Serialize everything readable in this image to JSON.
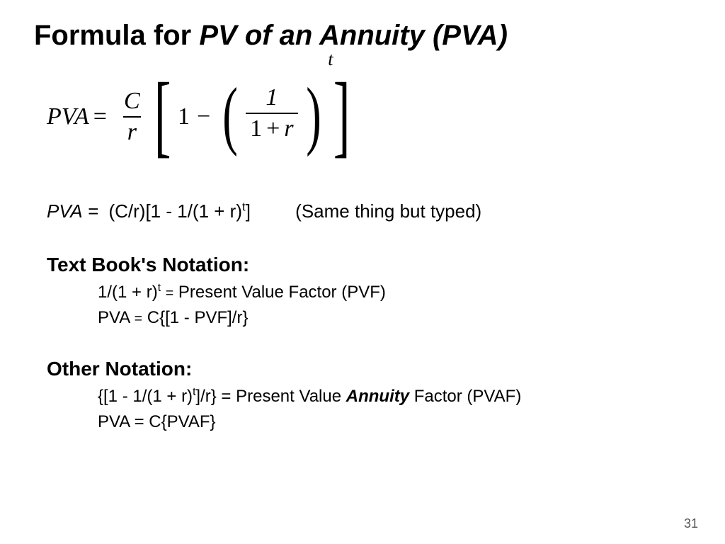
{
  "title": {
    "prefix": "Formula for ",
    "italic": "PV of an Annuity (PVA)"
  },
  "formula": {
    "lhs": "PVA",
    "equals": "=",
    "frac1": {
      "num": "C",
      "den": "r"
    },
    "one": "1",
    "minus": "−",
    "inner": {
      "num": "1",
      "den_left": "1",
      "plus": "+",
      "den_right": "r"
    },
    "exp": "t"
  },
  "typed_line": {
    "lhs": "PVA",
    "eq": "=",
    "body_a": "(C/r)[1 - 1/(1 + r)",
    "sup": "t",
    "body_b": "]",
    "note": "(Same thing but typed)"
  },
  "textbook": {
    "heading": "Text Book's Notation:",
    "l1a": "1/(1 + r)",
    "l1sup": "t",
    "l1b": " Present Value Factor (PVF)",
    "l2a": "PVA ",
    "l2b": " C{[1 - PVF]/r}"
  },
  "other": {
    "heading": "Other Notation:",
    "l1a": "{[1 - 1/(1 + r)",
    "l1sup": "t",
    "l1b": "]/r} = Present Value ",
    "l1ann": "Annuity",
    "l1c": " Factor (PVAF)",
    "l2": "PVA = C{PVAF}"
  },
  "eqsmall": "=",
  "pagenum": "31",
  "colors": {
    "text": "#000000",
    "bg": "#ffffff",
    "pagenum": "#555555"
  },
  "fontsize": {
    "title": 40,
    "formula": 34,
    "body": 26,
    "sub": 24,
    "pagenum": 18
  }
}
